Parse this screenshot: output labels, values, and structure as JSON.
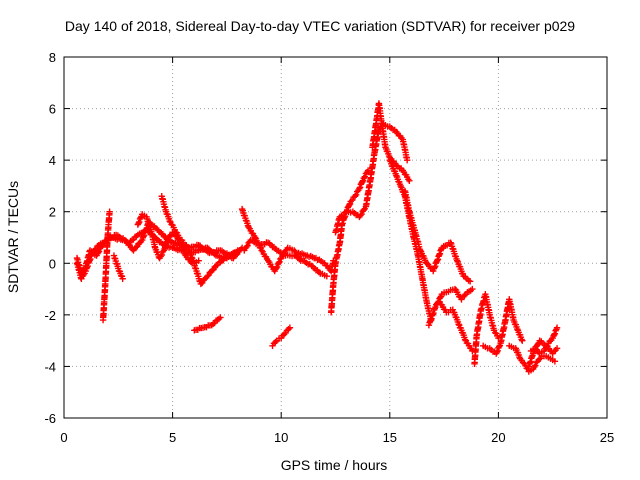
{
  "chart_data": {
    "type": "scatter",
    "title": "Day 140 of 2018, Sidereal Day-to-day VTEC variation (SDTVAR) for receiver p029",
    "xlabel": "GPS time / hours",
    "ylabel": "SDTVAR / TECUs",
    "xlim": [
      0,
      25
    ],
    "ylim": [
      -6,
      8
    ],
    "xticks": [
      "0",
      "5",
      "10",
      "15",
      "20",
      "25"
    ],
    "yticks": [
      "-6",
      "-4",
      "-2",
      "0",
      "2",
      "4",
      "6",
      "8"
    ],
    "grid": true,
    "marker": "+",
    "color": "#ff0000",
    "series": [
      {
        "name": "SDTVAR",
        "segments": [
          [
            [
              0.6,
              0.2
            ],
            [
              0.8,
              -0.4
            ],
            [
              1.0,
              -0.1
            ],
            [
              1.2,
              0.5
            ],
            [
              1.5,
              0.3
            ],
            [
              1.8,
              0.8
            ],
            [
              2.2,
              1.0
            ],
            [
              2.7,
              0.9
            ],
            [
              3.0,
              0.8
            ],
            [
              3.4,
              1.1
            ],
            [
              3.8,
              1.3
            ],
            [
              4.2,
              1.0
            ],
            [
              4.6,
              0.7
            ],
            [
              5.0,
              0.6
            ],
            [
              5.4,
              0.5
            ],
            [
              5.8,
              0.4
            ],
            [
              6.2,
              0.5
            ],
            [
              6.6,
              0.6
            ],
            [
              7.0,
              0.3
            ],
            [
              7.5,
              0.2
            ],
            [
              8.0,
              0.5
            ]
          ],
          [
            [
              0.6,
              0.0
            ],
            [
              0.8,
              -0.6
            ],
            [
              1.0,
              -0.3
            ],
            [
              1.3,
              0.4
            ],
            [
              1.6,
              0.7
            ],
            [
              2.0,
              0.9
            ],
            [
              2.4,
              1.1
            ],
            [
              2.8,
              0.9
            ],
            [
              3.2,
              0.5
            ],
            [
              3.6,
              0.9
            ],
            [
              3.9,
              1.6
            ],
            [
              4.3,
              1.3
            ],
            [
              4.8,
              0.9
            ],
            [
              5.3,
              0.7
            ],
            [
              5.8,
              0.6
            ],
            [
              6.2,
              0.7
            ],
            [
              6.7,
              0.4
            ],
            [
              7.2,
              0.5
            ],
            [
              7.8,
              0.2
            ],
            [
              8.2,
              0.6
            ]
          ],
          [
            [
              1.8,
              -2.2
            ],
            [
              1.85,
              -1.5
            ],
            [
              1.9,
              -0.8
            ],
            [
              1.95,
              0.0
            ],
            [
              2.0,
              0.9
            ],
            [
              2.05,
              1.5
            ],
            [
              2.1,
              2.0
            ]
          ],
          [
            [
              2.3,
              0.3
            ],
            [
              2.5,
              -0.2
            ],
            [
              2.7,
              -0.6
            ]
          ],
          [
            [
              4.5,
              2.6
            ],
            [
              4.7,
              2.0
            ],
            [
              4.9,
              1.6
            ],
            [
              5.1,
              1.3
            ],
            [
              5.3,
              1.0
            ],
            [
              5.5,
              0.8
            ],
            [
              5.7,
              0.6
            ],
            [
              5.9,
              0.2
            ],
            [
              6.1,
              -0.3
            ],
            [
              6.3,
              -0.8
            ],
            [
              6.6,
              -0.5
            ],
            [
              7.0,
              -0.1
            ],
            [
              7.4,
              0.2
            ],
            [
              7.8,
              0.4
            ]
          ],
          [
            [
              3.4,
              1.5
            ],
            [
              3.6,
              1.9
            ],
            [
              3.8,
              1.8
            ],
            [
              4.0,
              1.3
            ],
            [
              4.2,
              0.6
            ],
            [
              4.4,
              0.2
            ],
            [
              4.6,
              0.5
            ],
            [
              4.8,
              1.0
            ],
            [
              5.0,
              1.2
            ],
            [
              5.3,
              0.9
            ],
            [
              5.6,
              0.3
            ],
            [
              5.9,
              0.0
            ],
            [
              6.2,
              0.1
            ]
          ],
          [
            [
              6.0,
              -2.6
            ],
            [
              6.4,
              -2.5
            ],
            [
              6.8,
              -2.4
            ],
            [
              7.2,
              -2.1
            ]
          ],
          [
            [
              8.2,
              2.1
            ],
            [
              8.5,
              1.4
            ],
            [
              8.8,
              1.0
            ],
            [
              9.1,
              0.5
            ],
            [
              9.4,
              0.1
            ],
            [
              9.7,
              -0.3
            ],
            [
              10.0,
              0.2
            ],
            [
              10.3,
              0.6
            ],
            [
              10.6,
              0.5
            ],
            [
              10.9,
              0.1
            ]
          ],
          [
            [
              8.3,
              0.5
            ],
            [
              8.6,
              0.9
            ],
            [
              9.0,
              0.7
            ],
            [
              9.4,
              0.8
            ],
            [
              9.8,
              0.5
            ],
            [
              10.2,
              0.3
            ],
            [
              10.6,
              0.3
            ],
            [
              11.0,
              0.1
            ],
            [
              11.4,
              -0.1
            ],
            [
              11.8,
              -0.4
            ],
            [
              12.1,
              -0.5
            ]
          ],
          [
            [
              9.6,
              -3.2
            ],
            [
              9.8,
              -3.0
            ],
            [
              10.0,
              -2.9
            ],
            [
              10.2,
              -2.7
            ],
            [
              10.4,
              -2.5
            ]
          ],
          [
            [
              10.8,
              0.4
            ],
            [
              11.2,
              0.3
            ],
            [
              11.6,
              0.2
            ],
            [
              12.0,
              0.0
            ],
            [
              12.3,
              -0.3
            ],
            [
              12.4,
              0.1
            ]
          ],
          [
            [
              12.3,
              -1.9
            ],
            [
              12.4,
              -0.8
            ],
            [
              12.5,
              0.0
            ],
            [
              12.7,
              0.8
            ],
            [
              12.8,
              1.5
            ],
            [
              13.0,
              2.0
            ],
            [
              13.2,
              2.4
            ],
            [
              13.4,
              2.6
            ],
            [
              13.6,
              2.9
            ],
            [
              13.8,
              3.3
            ],
            [
              14.0,
              3.6
            ]
          ],
          [
            [
              12.5,
              1.2
            ],
            [
              12.7,
              1.8
            ],
            [
              13.0,
              2.0
            ],
            [
              13.3,
              2.0
            ],
            [
              13.6,
              1.8
            ],
            [
              13.9,
              2.2
            ],
            [
              14.1,
              3.2
            ],
            [
              14.3,
              4.3
            ],
            [
              14.5,
              5.2
            ],
            [
              14.7,
              5.4
            ],
            [
              15.0,
              5.3
            ],
            [
              15.3,
              5.1
            ],
            [
              15.6,
              4.8
            ],
            [
              15.8,
              4.0
            ]
          ],
          [
            [
              14.2,
              4.5
            ],
            [
              14.4,
              5.6
            ],
            [
              14.5,
              6.2
            ],
            [
              14.6,
              5.6
            ],
            [
              14.8,
              4.5
            ],
            [
              15.0,
              4.1
            ],
            [
              15.3,
              3.8
            ],
            [
              15.6,
              3.6
            ],
            [
              15.9,
              3.2
            ]
          ],
          [
            [
              15.0,
              4.0
            ],
            [
              15.3,
              3.4
            ],
            [
              15.5,
              3.0
            ],
            [
              15.7,
              2.6
            ],
            [
              15.9,
              1.8
            ],
            [
              16.1,
              1.0
            ],
            [
              16.3,
              0.3
            ],
            [
              16.5,
              -0.6
            ],
            [
              16.7,
              -1.5
            ],
            [
              16.9,
              -2.2
            ]
          ],
          [
            [
              15.7,
              2.8
            ],
            [
              15.9,
              2.0
            ],
            [
              16.2,
              1.1
            ],
            [
              16.4,
              0.5
            ],
            [
              16.7,
              0.0
            ],
            [
              17.0,
              -0.3
            ],
            [
              17.4,
              0.6
            ],
            [
              17.8,
              0.8
            ],
            [
              18.1,
              0.1
            ],
            [
              18.4,
              -0.5
            ],
            [
              18.7,
              -0.7
            ]
          ],
          [
            [
              16.8,
              -2.4
            ],
            [
              17.1,
              -1.7
            ],
            [
              17.4,
              -1.2
            ],
            [
              17.7,
              -1.1
            ],
            [
              18.0,
              -1.0
            ],
            [
              18.3,
              -1.4
            ],
            [
              18.5,
              -1.2
            ],
            [
              18.8,
              -1.0
            ]
          ],
          [
            [
              17.3,
              -1.5
            ],
            [
              17.6,
              -1.9
            ],
            [
              17.9,
              -1.8
            ],
            [
              18.2,
              -2.4
            ],
            [
              18.5,
              -3.0
            ],
            [
              18.8,
              -3.4
            ]
          ],
          [
            [
              18.9,
              -3.9
            ],
            [
              19.0,
              -2.8
            ],
            [
              19.2,
              -1.8
            ],
            [
              19.4,
              -1.2
            ],
            [
              19.6,
              -2.0
            ],
            [
              19.8,
              -2.6
            ],
            [
              20.0,
              -2.9
            ]
          ],
          [
            [
              19.3,
              -3.2
            ],
            [
              19.6,
              -3.3
            ],
            [
              19.9,
              -3.5
            ],
            [
              20.1,
              -3.1
            ],
            [
              20.3,
              -2.3
            ],
            [
              20.5,
              -1.4
            ],
            [
              20.7,
              -2.2
            ],
            [
              20.9,
              -2.6
            ],
            [
              21.1,
              -3.0
            ]
          ],
          [
            [
              20.5,
              -3.2
            ],
            [
              20.8,
              -3.3
            ],
            [
              21.0,
              -3.7
            ],
            [
              21.2,
              -3.9
            ],
            [
              21.4,
              -4.2
            ],
            [
              21.6,
              -4.1
            ],
            [
              21.8,
              -3.8
            ],
            [
              22.0,
              -3.6
            ],
            [
              22.2,
              -3.6
            ],
            [
              22.4,
              -3.7
            ],
            [
              22.6,
              -3.8
            ]
          ],
          [
            [
              21.5,
              -3.4
            ],
            [
              21.7,
              -3.3
            ],
            [
              21.9,
              -3.5
            ],
            [
              22.1,
              -3.4
            ],
            [
              22.3,
              -3.1
            ],
            [
              22.5,
              -2.9
            ],
            [
              22.7,
              -2.5
            ]
          ],
          [
            [
              21.4,
              -4.0
            ],
            [
              21.6,
              -3.5
            ],
            [
              21.9,
              -3.0
            ],
            [
              22.2,
              -3.2
            ],
            [
              22.5,
              -3.5
            ],
            [
              22.7,
              -3.3
            ]
          ]
        ]
      }
    ]
  }
}
